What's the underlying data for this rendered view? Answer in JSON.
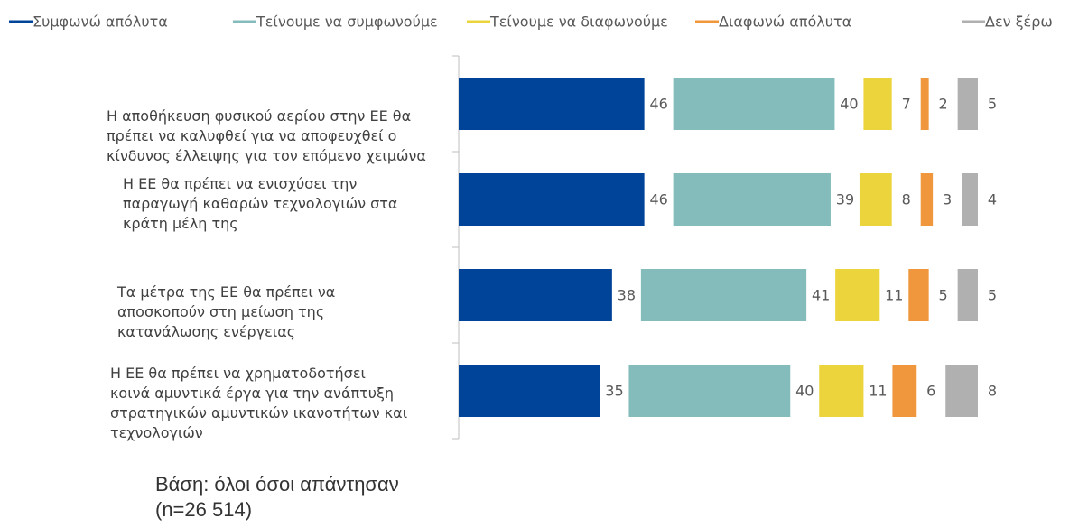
{
  "chart_data": {
    "type": "bar",
    "categories": [
      "Η αποθήκευση φυσικού αερίου στην ΕΕ θα πρέπει να καλυφθεί για να αποφευχθεί ο κίνδυνος έλλειψης για τον επόμενο χειμώνα",
      "Η ΕΕ θα πρέπει να ενισχύσει την παραγωγή καθαρών τεχνολογιών στα κράτη μέλη της",
      "Τα μέτρα της ΕΕ θα πρέπει να αποσκοπούν στη μείωση της κατανάλωσης ενέργειας",
      "Η ΕΕ θα πρέπει να χρηματοδοτήσει κοινά αμυντικά έργα για την ανάπτυξη στρατηγικών αμυντικών ικανοτήτων και τεχνολογιών"
    ],
    "series": [
      {
        "name": "Συμφωνώ απόλυτα",
        "color": "#00449a",
        "values": [
          46,
          46,
          38,
          35
        ]
      },
      {
        "name": "Τείνουμε να συμφωνούμε",
        "color": "#84bcbc",
        "values": [
          40,
          39,
          41,
          40
        ]
      },
      {
        "name": "Τείνουμε να διαφωνούμε",
        "color": "#ecd43c",
        "values": [
          7,
          8,
          11,
          11
        ]
      },
      {
        "name": "Διαφωνώ απόλυτα",
        "color": "#f0963c",
        "values": [
          2,
          3,
          5,
          6
        ]
      },
      {
        "name": "Δεν ξέρω",
        "color": "#b0b0b0",
        "values": [
          5,
          4,
          5,
          8
        ]
      }
    ],
    "legend": "top",
    "note": [
      "Βάση: όλοι όσοι απάντησαν",
      "(n=26 514)"
    ]
  }
}
